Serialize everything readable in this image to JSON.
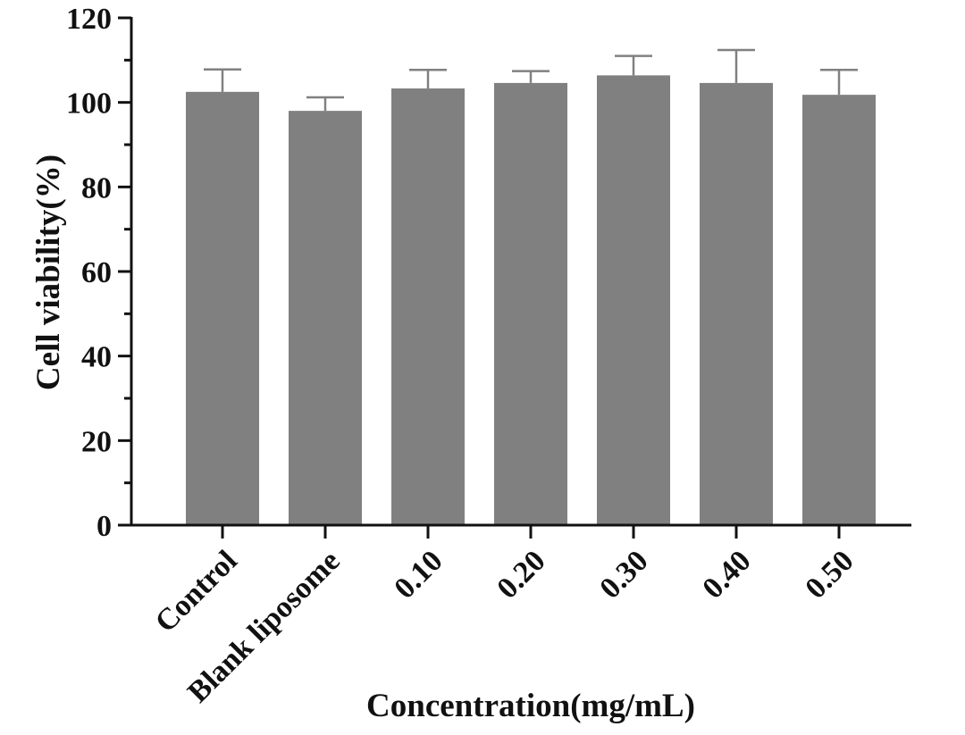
{
  "chart_data": {
    "type": "bar",
    "title": "",
    "xlabel": "Concentration(mg/mL)",
    "ylabel": "Cell viability(%)",
    "categories": [
      "Control",
      "Blank liposome",
      "0.10",
      "0.20",
      "0.30",
      "0.40",
      "0.50"
    ],
    "values": [
      102.5,
      98,
      103.3,
      104.6,
      106.4,
      104.6,
      101.8
    ],
    "errors": [
      5.3,
      3.2,
      4.4,
      2.8,
      4.6,
      7.8,
      5.9
    ],
    "ylim": [
      0,
      120
    ],
    "yticks": [
      "0",
      "20",
      "40",
      "60",
      "80",
      "100",
      "120"
    ],
    "grid": false,
    "legend": "none",
    "colors": {
      "bar": "#808080",
      "error_bar": "#808080",
      "axis": "#111111"
    }
  }
}
